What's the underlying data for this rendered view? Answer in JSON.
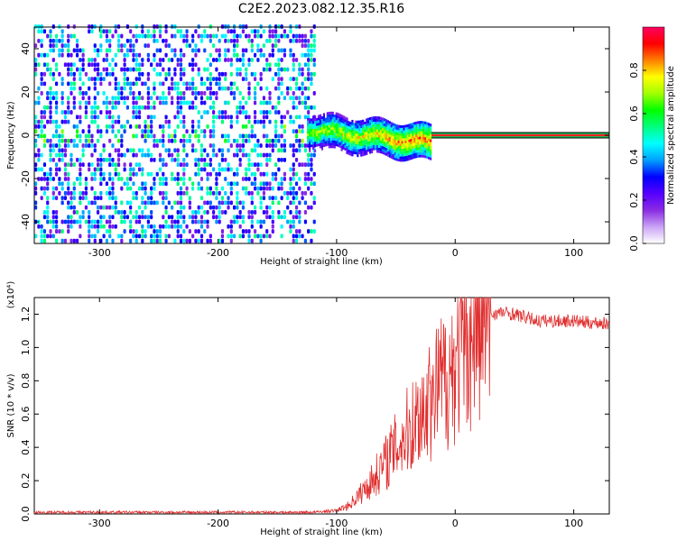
{
  "title": "C2E2.2023.082.12.35.R16",
  "chart_data": [
    {
      "type": "heatmap",
      "panel": "spectrogram",
      "xlabel": "Height of straight line (km)",
      "ylabel": "Frequency (Hz)",
      "xlim": [
        -355,
        130
      ],
      "ylim": [
        -50,
        50
      ],
      "x_ticks": [
        -300,
        -200,
        -100,
        0,
        100
      ],
      "y_ticks": [
        -40,
        -20,
        0,
        20,
        40
      ],
      "colorbar": {
        "label": "Normalized spectral amplitude",
        "range": [
          0,
          1
        ],
        "ticks": [
          "0.0",
          "0.2",
          "0.4",
          "0.6",
          "0.8"
        ],
        "colors": [
          "#ffffff",
          "#c9a3f5",
          "#8a2be2",
          "#5500ff",
          "#0000ff",
          "#00a0ff",
          "#00ffff",
          "#00ff80",
          "#00ff00",
          "#a0ff00",
          "#ffff00",
          "#ff8000",
          "#ff0000",
          "#ff0060"
        ]
      },
      "features": [
        {
          "name": "noise",
          "x_range": [
            -355,
            -118
          ],
          "freq_range": [
            -50,
            50
          ],
          "level": 0.15
        },
        {
          "name": "signal_onset",
          "x_range": [
            -125,
            -20
          ],
          "center_freq": [
            3,
            -3
          ],
          "level": 0.6
        },
        {
          "name": "carrier_line",
          "x_range": [
            -20,
            130
          ],
          "freq": 0,
          "level": 0.85
        }
      ]
    },
    {
      "type": "line",
      "panel": "snr",
      "xlabel": "Height of straight line (km)",
      "ylabel": "SNR (10 * v/v)",
      "y_multiplier": "(x10⁴)",
      "xlim": [
        -355,
        130
      ],
      "ylim": [
        0,
        1.3
      ],
      "x_ticks": [
        -300,
        -200,
        -100,
        0,
        100
      ],
      "y_ticks": [
        "0.0",
        "0.2",
        "0.4",
        "0.6",
        "0.8",
        "1.0",
        "1.2"
      ],
      "series": [
        {
          "color": "#e03030",
          "x": [
            -355,
            -300,
            -250,
            -200,
            -150,
            -120,
            -100,
            -90,
            -80,
            -70,
            -60,
            -50,
            -40,
            -30,
            -25,
            -20,
            -15,
            -10,
            -5,
            0,
            10,
            20,
            30,
            40,
            50,
            60,
            70,
            80,
            90,
            100,
            110,
            120,
            130
          ],
          "y": [
            0.01,
            0.01,
            0.01,
            0.01,
            0.01,
            0.01,
            0.02,
            0.05,
            0.12,
            0.2,
            0.3,
            0.4,
            0.5,
            0.6,
            0.65,
            0.7,
            0.75,
            0.8,
            0.85,
            0.9,
            1.05,
            1.15,
            1.2,
            1.21,
            1.2,
            1.18,
            1.16,
            1.16,
            1.16,
            1.16,
            1.15,
            1.15,
            1.14
          ]
        }
      ]
    }
  ]
}
